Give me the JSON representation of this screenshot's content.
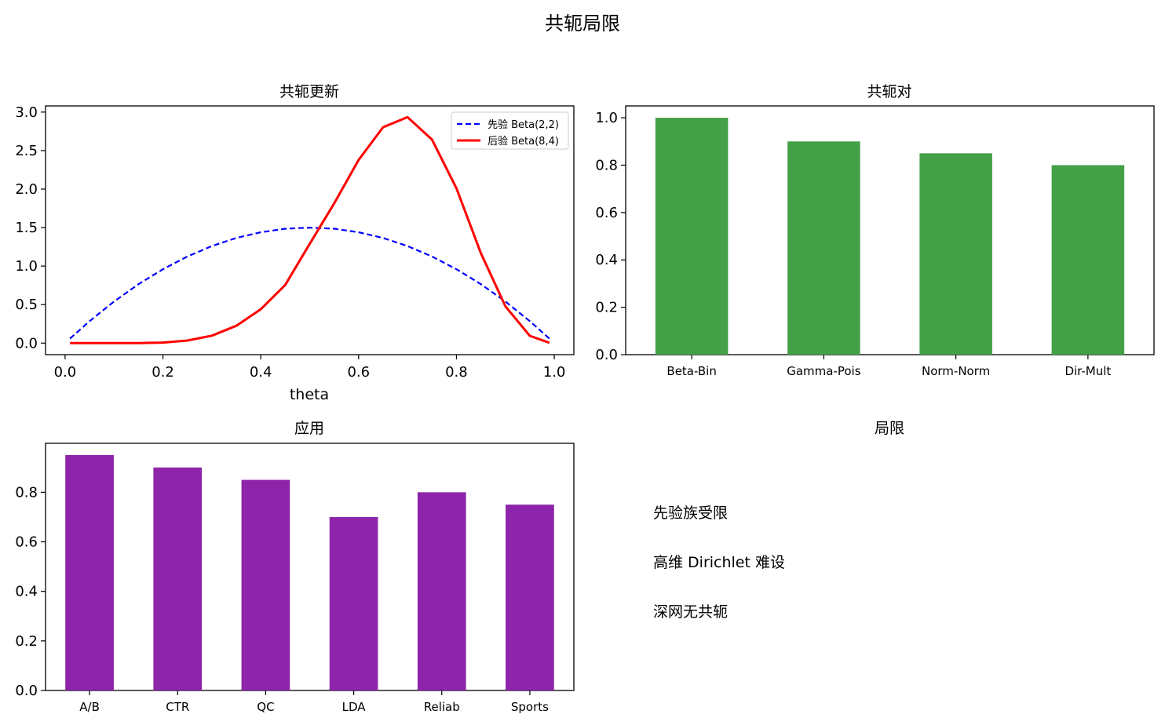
{
  "figure": {
    "suptitle": "共轭局限"
  },
  "chart_data": [
    {
      "type": "line",
      "title": "共轭更新",
      "xlabel": "theta",
      "ylabel": "",
      "xlim": [
        -0.04,
        1.04
      ],
      "ylim": [
        -0.15,
        3.08
      ],
      "xticks": [
        0.0,
        0.2,
        0.4,
        0.6,
        0.8,
        1.0
      ],
      "xtick_labels": [
        "0.0",
        "0.2",
        "0.4",
        "0.6",
        "0.8",
        "1.0"
      ],
      "yticks": [
        0.0,
        0.5,
        1.0,
        1.5,
        2.0,
        2.5,
        3.0
      ],
      "ytick_labels": [
        "0.0",
        "0.5",
        "1.0",
        "1.5",
        "2.0",
        "2.5",
        "3.0"
      ],
      "grid": false,
      "legend_position": "upper right",
      "series": [
        {
          "name": "先验 Beta(2,2)",
          "style": "dashed",
          "color": "#0000ff",
          "x": [
            0.01,
            0.05,
            0.1,
            0.15,
            0.2,
            0.25,
            0.3,
            0.35,
            0.4,
            0.45,
            0.5,
            0.55,
            0.6,
            0.65,
            0.7,
            0.75,
            0.8,
            0.85,
            0.9,
            0.95,
            0.99
          ],
          "y": [
            0.059,
            0.285,
            0.54,
            0.765,
            0.96,
            1.125,
            1.26,
            1.365,
            1.44,
            1.485,
            1.5,
            1.485,
            1.44,
            1.365,
            1.26,
            1.125,
            0.96,
            0.765,
            0.54,
            0.285,
            0.059
          ]
        },
        {
          "name": "后验 Beta(8,4)",
          "style": "solid",
          "color": "#ff0000",
          "x": [
            0.01,
            0.05,
            0.1,
            0.15,
            0.2,
            0.25,
            0.3,
            0.35,
            0.4,
            0.45,
            0.5,
            0.55,
            0.6,
            0.65,
            0.7,
            0.75,
            0.8,
            0.85,
            0.9,
            0.95,
            0.99
          ],
          "y": [
            0.0,
            0.0,
            0.0,
            0.001,
            0.007,
            0.033,
            0.097,
            0.225,
            0.44,
            0.755,
            1.289,
            1.814,
            2.378,
            2.804,
            2.934,
            2.643,
            2.011,
            1.166,
            0.478,
            0.095,
            0.004
          ]
        }
      ]
    },
    {
      "type": "bar",
      "title": "共轭对",
      "categories": [
        "Beta-Bin",
        "Gamma-Pois",
        "Norm-Norm",
        "Dir-Mult"
      ],
      "values": [
        1.0,
        0.9,
        0.85,
        0.8
      ],
      "color": "#43a047",
      "ylim": [
        0,
        1.05
      ],
      "yticks": [
        0.0,
        0.2,
        0.4,
        0.6,
        0.8,
        1.0
      ],
      "ytick_labels": [
        "0.0",
        "0.2",
        "0.4",
        "0.6",
        "0.8",
        "1.0"
      ],
      "xlabel": "",
      "ylabel": "",
      "grid": false
    },
    {
      "type": "bar",
      "title": "应用",
      "categories": [
        "A/B",
        "CTR",
        "QC",
        "LDA",
        "Reliab",
        "Sports"
      ],
      "values": [
        0.95,
        0.9,
        0.85,
        0.7,
        0.8,
        0.75
      ],
      "color": "#8e24aa",
      "ylim": [
        0,
        0.9975
      ],
      "yticks": [
        0.0,
        0.2,
        0.4,
        0.6,
        0.8
      ],
      "ytick_labels": [
        "0.0",
        "0.2",
        "0.4",
        "0.6",
        "0.8"
      ],
      "xlabel": "",
      "ylabel": "",
      "grid": false
    }
  ],
  "text_panel": {
    "title": "局限",
    "lines": [
      "先验族受限",
      "高维 Dirichlet 难设",
      "深网无共轭"
    ]
  }
}
